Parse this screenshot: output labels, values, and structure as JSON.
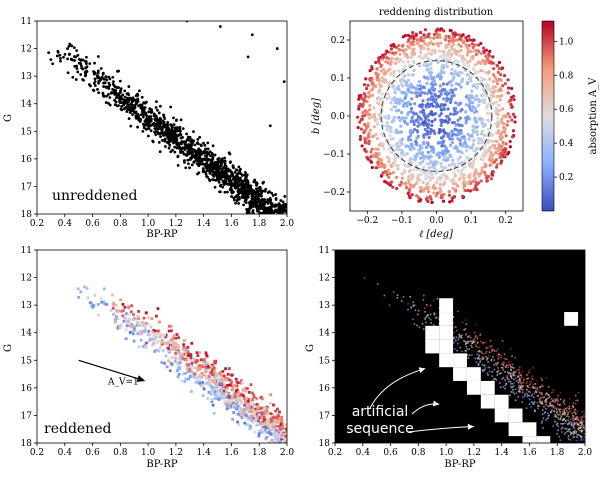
{
  "chart_data": [
    {
      "id": "p1",
      "type": "scatter",
      "xlabel": "BP-RP",
      "ylabel": "G",
      "xlim": [
        0.2,
        2.0
      ],
      "ylim": [
        18,
        11
      ],
      "y_inverted": true,
      "xticks": [
        "0.2",
        "0.4",
        "0.6",
        "0.8",
        "1.0",
        "1.2",
        "1.4",
        "1.6",
        "1.8",
        "2.0"
      ],
      "yticks": [
        "11",
        "12",
        "13",
        "14",
        "15",
        "16",
        "17",
        "18"
      ],
      "point_color": "#000000",
      "annotation": "unreddened",
      "points": [
        [
          0.42,
          12.0
        ],
        [
          0.48,
          12.3
        ],
        [
          0.45,
          11.9
        ],
        [
          0.55,
          12.7
        ],
        [
          0.62,
          12.9
        ],
        [
          0.7,
          13.4
        ],
        [
          0.75,
          13.2
        ],
        [
          0.8,
          13.8
        ],
        [
          0.85,
          13.9
        ],
        [
          0.9,
          14.1
        ],
        [
          0.95,
          14.4
        ],
        [
          1.0,
          14.6
        ],
        [
          1.05,
          14.8
        ],
        [
          1.1,
          15.0
        ],
        [
          1.15,
          15.2
        ],
        [
          1.2,
          15.4
        ],
        [
          1.25,
          15.6
        ],
        [
          1.3,
          15.8
        ],
        [
          1.35,
          16.0
        ],
        [
          1.4,
          16.2
        ],
        [
          1.45,
          16.4
        ],
        [
          1.5,
          16.6
        ],
        [
          1.55,
          16.8
        ],
        [
          1.6,
          17.0
        ],
        [
          1.65,
          17.2
        ],
        [
          1.7,
          17.4
        ],
        [
          1.75,
          17.6
        ],
        [
          1.8,
          17.8
        ],
        [
          1.85,
          17.9
        ],
        [
          1.9,
          17.95
        ],
        [
          1.28,
          11.0
        ],
        [
          1.52,
          11.2
        ],
        [
          1.75,
          11.5
        ],
        [
          1.93,
          12.0
        ],
        [
          1.98,
          13.2
        ],
        [
          1.88,
          14.8
        ],
        [
          1.72,
          12.3
        ],
        [
          0.3,
          12.4
        ]
      ]
    },
    {
      "id": "p2",
      "type": "scatter",
      "title": "reddening distribution",
      "xlabel": "ℓ [deg]",
      "ylabel": "b [deg]",
      "xlim": [
        -0.25,
        0.25
      ],
      "ylim": [
        -0.25,
        0.25
      ],
      "xticks": [
        "−0.2",
        "−0.1",
        "0.0",
        "0.1",
        "0.2"
      ],
      "yticks": [
        "−0.2",
        "−0.1",
        "0.0",
        "0.1",
        "0.2"
      ],
      "disk_radius": 0.23,
      "dashed_circle_radius": 0.16,
      "colorbar": {
        "label": "absorption A_V",
        "range": [
          0.0,
          1.12
        ],
        "ticks": [
          "0.2",
          "0.4",
          "0.6",
          "0.8",
          "1.0"
        ],
        "tick_values": [
          0.2,
          0.4,
          0.6,
          0.8,
          1.0
        ],
        "low_color": "#3b4cc0",
        "mid_color": "#dddddd",
        "high_color": "#b40426"
      }
    },
    {
      "id": "p3",
      "type": "scatter",
      "xlabel": "BP-RP",
      "ylabel": "G",
      "xlim": [
        0.2,
        2.0
      ],
      "ylim": [
        18,
        11
      ],
      "y_inverted": true,
      "xticks": [
        "0.2",
        "0.4",
        "0.6",
        "0.8",
        "1.0",
        "1.2",
        "1.4",
        "1.6",
        "1.8",
        "2.0"
      ],
      "yticks": [
        "11",
        "12",
        "13",
        "14",
        "15",
        "16",
        "17",
        "18"
      ],
      "annotation": "reddened",
      "arrow": {
        "x1": 0.5,
        "y1": 15.0,
        "x2": 0.98,
        "y2": 15.75,
        "label": "A_V=1"
      }
    },
    {
      "id": "p4",
      "type": "heatmap",
      "xlabel": "BP-RP",
      "ylabel": "G",
      "xlim": [
        0.2,
        2.0
      ],
      "ylim": [
        18,
        11
      ],
      "y_inverted": true,
      "xticks": [
        "0.2",
        "0.4",
        "0.6",
        "0.8",
        "1.0",
        "1.2",
        "1.4",
        "1.6",
        "1.8",
        "2.0"
      ],
      "yticks": [
        "11",
        "12",
        "13",
        "14",
        "15",
        "16",
        "17",
        "18"
      ],
      "background": "#000000",
      "annotation": "artificial\nsequence",
      "white_cells": [
        [
          1.0,
          13.0
        ],
        [
          1.0,
          13.5
        ],
        [
          0.9,
          14.0
        ],
        [
          1.0,
          14.0
        ],
        [
          0.9,
          14.5
        ],
        [
          1.0,
          14.5
        ],
        [
          1.0,
          15.0
        ],
        [
          1.1,
          15.0
        ],
        [
          1.1,
          15.5
        ],
        [
          1.2,
          15.5
        ],
        [
          1.2,
          16.0
        ],
        [
          1.3,
          16.0
        ],
        [
          1.3,
          16.5
        ],
        [
          1.4,
          16.5
        ],
        [
          1.4,
          17.0
        ],
        [
          1.5,
          17.0
        ],
        [
          1.5,
          17.5
        ],
        [
          1.6,
          17.5
        ],
        [
          1.6,
          18.0
        ],
        [
          1.7,
          18.0
        ],
        [
          1.9,
          13.5
        ]
      ]
    }
  ]
}
